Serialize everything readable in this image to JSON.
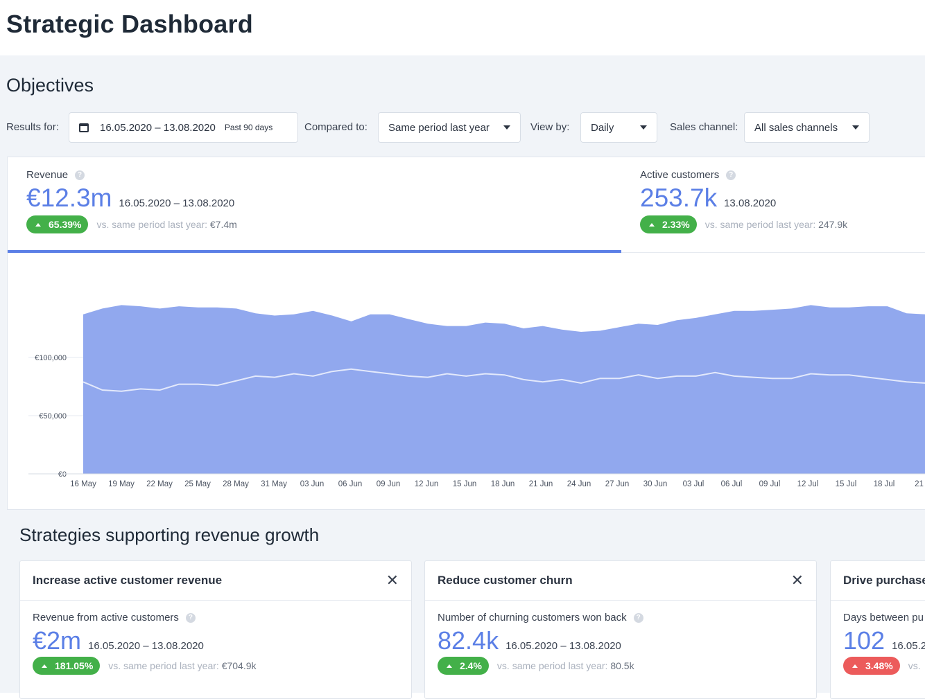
{
  "page_title": "Strategic Dashboard",
  "section_title": "Objectives",
  "filters": {
    "results_label": "Results for:",
    "date_range": "16.05.2020 – 13.08.2020",
    "date_range_note": "Past 90 days",
    "compared_label": "Compared to:",
    "compared_value": "Same period last year",
    "viewby_label": "View by:",
    "viewby_value": "Daily",
    "channel_label": "Sales channel:",
    "channel_value": "All sales channels"
  },
  "revenue": {
    "label": "Revenue",
    "value": "€12.3m",
    "date": "16.05.2020 – 13.08.2020",
    "change": "65.39%",
    "cmp_text": "vs. same period last year:",
    "cmp_value": "€7.4m"
  },
  "customers": {
    "label": "Active customers",
    "value": "253.7k",
    "date": "13.08.2020",
    "change": "2.33%",
    "cmp_text": "vs. same period last year:",
    "cmp_value": "247.9k"
  },
  "chart_data": {
    "type": "area",
    "title": "",
    "xlabel": "",
    "ylabel": "",
    "ylim": [
      0,
      150000
    ],
    "y_ticks": [
      "€0",
      "€50,000",
      "€100,000"
    ],
    "y_tick_values": [
      0,
      50000,
      100000
    ],
    "x_tick_labels": [
      "16 May",
      "19 May",
      "22 May",
      "25 May",
      "28 May",
      "31 May",
      "03 Jun",
      "06 Jun",
      "09 Jun",
      "12 Jun",
      "15 Jun",
      "18 Jun",
      "21 Jun",
      "24 Jun",
      "27 Jun",
      "30 Jun",
      "03 Jul",
      "06 Jul",
      "09 Jul",
      "12 Jul",
      "15 Jul",
      "18 Jul",
      "21 J"
    ],
    "series": [
      {
        "values": [
          137000,
          142000,
          145000,
          144000,
          142000,
          144000,
          143000,
          143000,
          142000,
          138000,
          136000,
          137000,
          140000,
          136000,
          131000,
          137000,
          137000,
          133000,
          129000,
          127000,
          127000,
          130000,
          129000,
          125000,
          127000,
          124000,
          122000,
          123000,
          126000,
          129000,
          128000,
          132000,
          134000,
          137000,
          140000,
          140000,
          141000,
          142000,
          145000,
          143000,
          143000,
          144000,
          144000,
          138000,
          137000
        ]
      },
      {
        "values": [
          79000,
          72000,
          71000,
          73000,
          72000,
          77000,
          77000,
          76000,
          80000,
          84000,
          83000,
          86000,
          84000,
          88000,
          90000,
          88000,
          86000,
          84000,
          83000,
          86000,
          84000,
          86000,
          85000,
          81000,
          79000,
          81000,
          78000,
          82000,
          82000,
          85000,
          82000,
          84000,
          84000,
          87000,
          84000,
          83000,
          82000,
          82000,
          86000,
          85000,
          85000,
          83000,
          81000,
          79000,
          78000
        ]
      }
    ],
    "colors": {
      "area": "#91a8ee",
      "line": "#e3e9fb",
      "grid": "#e6eaf0"
    }
  },
  "strategies_title": "Strategies supporting revenue growth",
  "strategies": [
    {
      "title": "Increase active customer revenue",
      "metric": "Revenue from active customers",
      "value": "€2m",
      "date": "16.05.2020 – 13.08.2020",
      "change": "181.05%",
      "cmp_text": "vs. same period last year:",
      "cmp_value": "€704.9k",
      "trend": "up"
    },
    {
      "title": "Reduce customer churn",
      "metric": "Number of churning customers won back",
      "value": "82.4k",
      "date": "16.05.2020 – 13.08.2020",
      "change": "2.4%",
      "cmp_text": "vs. same period last year:",
      "cmp_value": "80.5k",
      "trend": "up"
    },
    {
      "title": "Drive purchase",
      "metric": "Days between pu",
      "value": "102",
      "date": "16.05.2",
      "change": "3.48%",
      "cmp_text": "vs.",
      "cmp_value": "",
      "trend": "up"
    }
  ]
}
